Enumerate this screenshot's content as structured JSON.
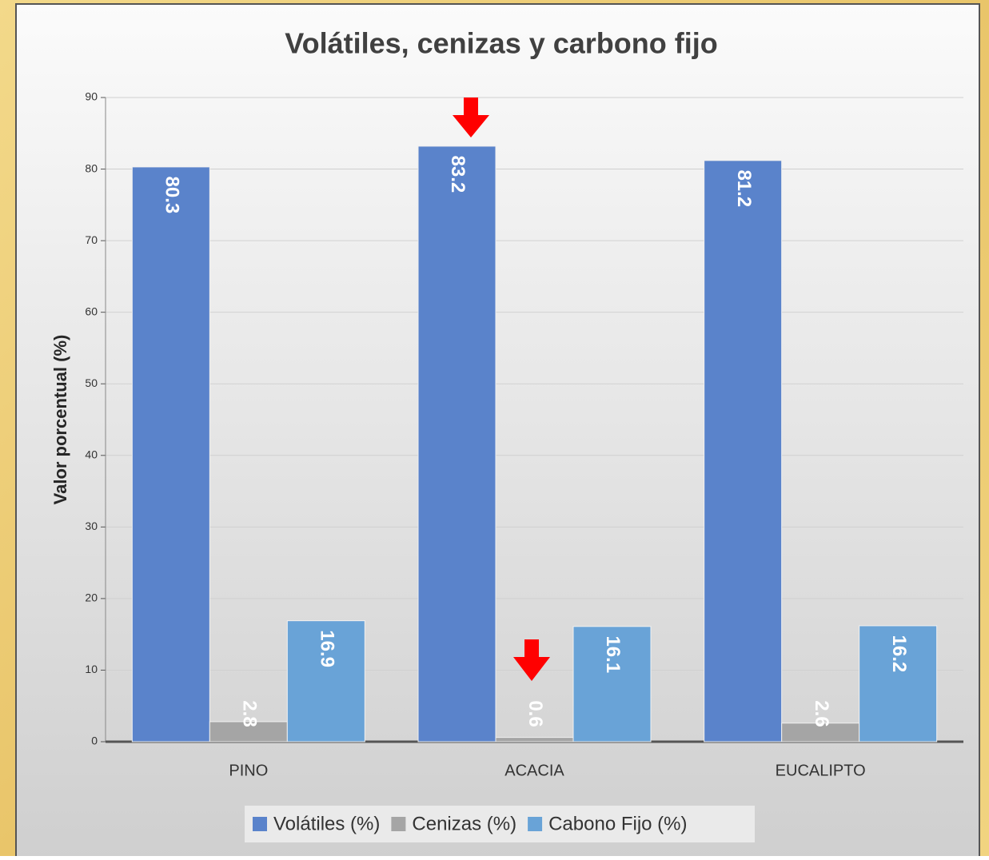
{
  "chart_data": {
    "type": "bar",
    "title": "Volátiles, cenizas y carbono fijo",
    "y_label": "Valor porcentual (%)",
    "categories": [
      "PINO",
      "ACACIA",
      "EUCALIPTO"
    ],
    "series": [
      {
        "name": "Volátiles (%)",
        "color": "#5a83cb",
        "values": [
          80.3,
          83.2,
          81.2
        ]
      },
      {
        "name": "Cenizas (%)",
        "color": "#a5a5a5",
        "values": [
          2.8,
          0.6,
          2.6
        ]
      },
      {
        "name": "Cabono Fijo (%)",
        "color": "#69a3d7",
        "values": [
          16.9,
          16.1,
          16.2
        ]
      }
    ],
    "ylim": [
      0,
      90
    ],
    "yticks": [
      0,
      10,
      20,
      30,
      40,
      50,
      60,
      70,
      80,
      90
    ],
    "grid": true,
    "legend": "bottom"
  }
}
